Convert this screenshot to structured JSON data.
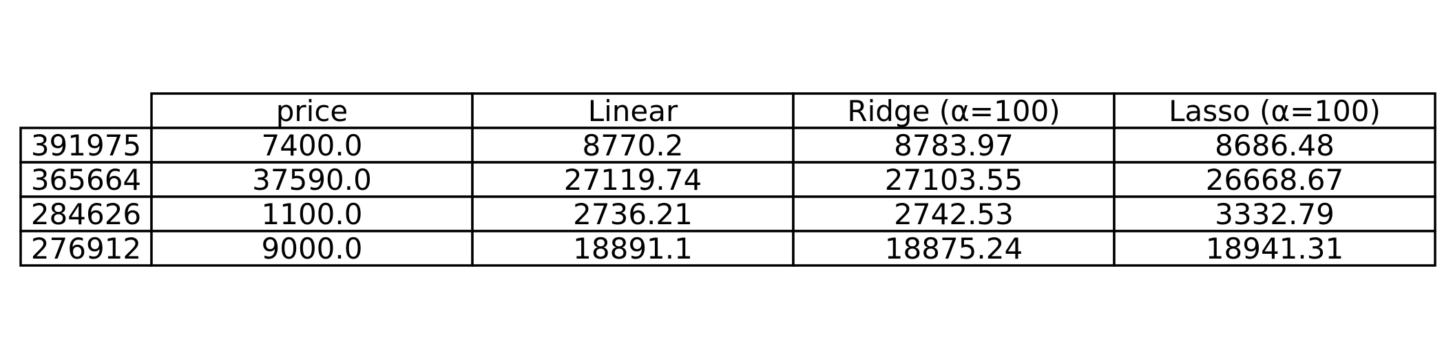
{
  "chart_data": {
    "type": "table",
    "columns": [
      "price",
      "Linear",
      "Ridge (α=100)",
      "Lasso (α=100)"
    ],
    "row_labels": [
      "391975",
      "365664",
      "284626",
      "276912"
    ],
    "rows": [
      [
        "7400.0",
        "8770.2",
        "8783.97",
        "8686.48"
      ],
      [
        "37590.0",
        "27119.74",
        "27103.55",
        "26668.67"
      ],
      [
        "1100.0",
        "2736.21",
        "2742.53",
        "3332.79"
      ],
      [
        "9000.0",
        "18891.1",
        "18875.24",
        "18941.31"
      ]
    ]
  },
  "colors": {
    "border": "#000000",
    "background": "#ffffff",
    "text": "#000000"
  }
}
